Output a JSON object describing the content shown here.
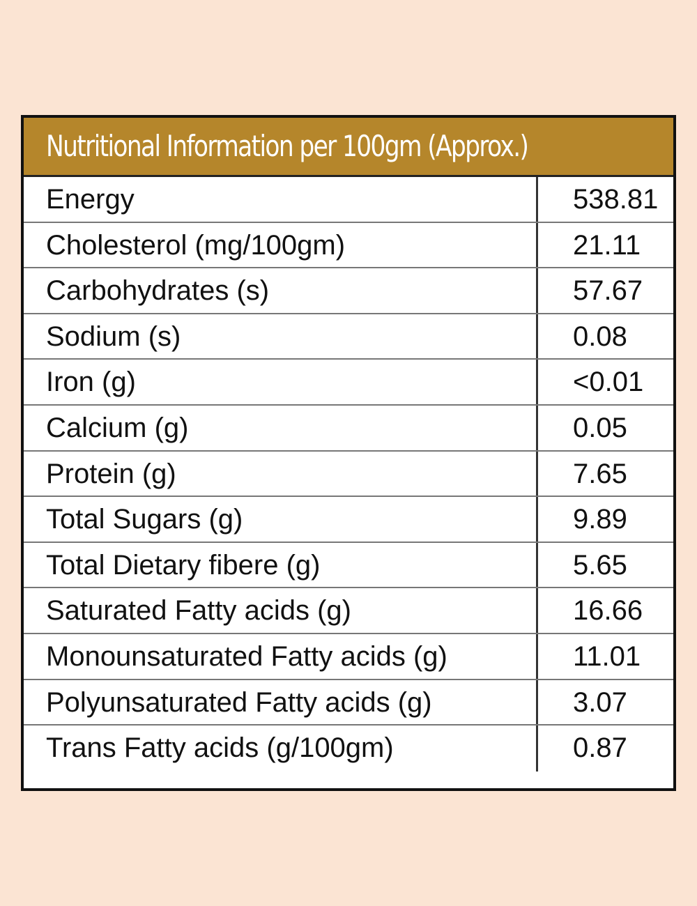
{
  "table": {
    "title": "Nutritional Information per 100gm (Approx.)",
    "rows": [
      [
        "Energy",
        "538.81"
      ],
      [
        "Cholesterol (mg/100gm)",
        "21.11"
      ],
      [
        "Carbohydrates (s)",
        "57.67"
      ],
      [
        "Sodium (s)",
        "0.08"
      ],
      [
        "Iron (g)",
        "<0.01"
      ],
      [
        "Calcium (g)",
        "0.05"
      ],
      [
        "Protein (g)",
        "7.65"
      ],
      [
        "Total Sugars (g)",
        "9.89"
      ],
      [
        "Total Dietary fibere (g)",
        "5.65"
      ],
      [
        "Saturated Fatty acids (g)",
        "16.66"
      ],
      [
        "Monounsaturated Fatty acids (g)",
        "11.01"
      ],
      [
        "Polyunsaturated Fatty acids (g)",
        "3.07"
      ],
      [
        "Trans Fatty acids (g/100gm)",
        "0.87"
      ]
    ]
  }
}
